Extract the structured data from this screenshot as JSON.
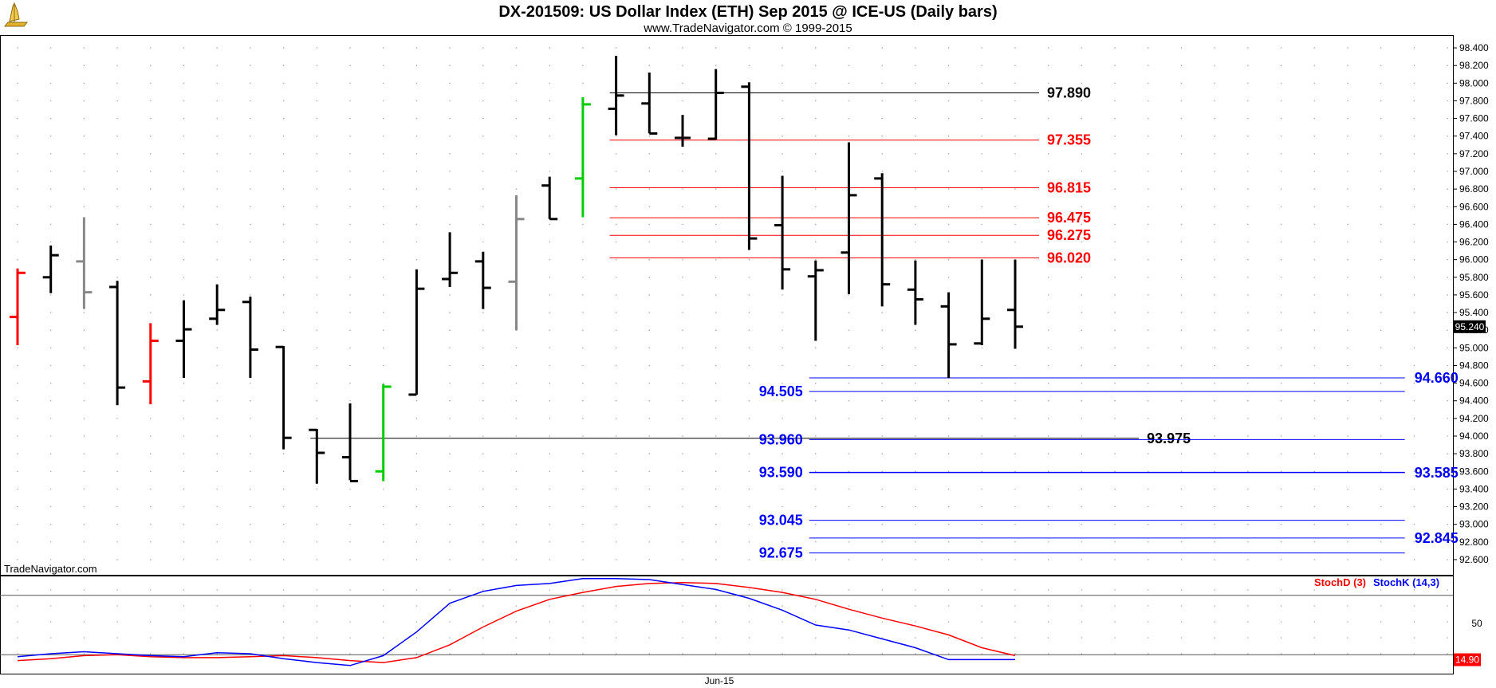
{
  "chart_data": {
    "type": "bar",
    "title": "DX-201509:  US Dollar Index (ETH) Sep 2015 @ ICE-US  (Daily bars)",
    "subtitle": "www.TradeNavigator.com © 1999-2015",
    "watermark": "TradeNavigator.com",
    "x_label": "Jun-15",
    "price_axis": {
      "ylim": [
        92.5,
        98.5
      ],
      "ticks": [
        "98.400",
        "98.200",
        "98.000",
        "97.800",
        "97.600",
        "97.400",
        "97.200",
        "97.000",
        "96.800",
        "96.600",
        "96.400",
        "96.200",
        "96.000",
        "95.800",
        "95.600",
        "95.400",
        "95.200",
        "95.000",
        "94.800",
        "94.600",
        "94.400",
        "94.200",
        "94.000",
        "93.800",
        "93.600",
        "93.400",
        "93.200",
        "93.000",
        "92.800",
        "92.600"
      ],
      "last_value": "95.240"
    },
    "colors": {
      "up": "#000000",
      "down_red": "#ff0000",
      "green": "#00cc00",
      "gray": "#888888",
      "resistance": "#ff0000",
      "support": "#0000ff",
      "stochK": "#0000ff",
      "stochD": "#ff0000"
    },
    "bars": [
      {
        "o": 95.35,
        "h": 95.9,
        "l": 95.03,
        "c": 95.85,
        "color": "red"
      },
      {
        "o": 95.8,
        "h": 96.16,
        "l": 95.62,
        "c": 96.05,
        "color": "black"
      },
      {
        "o": 95.98,
        "h": 96.48,
        "l": 95.44,
        "c": 95.63,
        "color": "gray"
      },
      {
        "o": 95.69,
        "h": 95.76,
        "l": 94.35,
        "c": 94.55,
        "color": "black"
      },
      {
        "o": 94.62,
        "h": 95.28,
        "l": 94.36,
        "c": 95.08,
        "color": "red"
      },
      {
        "o": 95.08,
        "h": 95.54,
        "l": 94.66,
        "c": 95.21,
        "color": "black"
      },
      {
        "o": 95.33,
        "h": 95.72,
        "l": 95.26,
        "c": 95.43,
        "color": "black"
      },
      {
        "o": 95.52,
        "h": 95.58,
        "l": 94.66,
        "c": 94.98,
        "color": "black"
      },
      {
        "o": 95.01,
        "h": 95.02,
        "l": 93.85,
        "c": 93.98,
        "color": "black"
      },
      {
        "o": 94.07,
        "h": 94.08,
        "l": 93.46,
        "c": 93.81,
        "color": "black"
      },
      {
        "o": 93.76,
        "h": 94.37,
        "l": 93.5,
        "c": 93.49,
        "color": "black"
      },
      {
        "o": 93.6,
        "h": 94.59,
        "l": 93.49,
        "c": 94.56,
        "color": "green"
      },
      {
        "o": 94.47,
        "h": 95.89,
        "l": 94.47,
        "c": 95.67,
        "color": "black"
      },
      {
        "o": 95.78,
        "h": 96.31,
        "l": 95.69,
        "c": 95.85,
        "color": "black"
      },
      {
        "o": 95.98,
        "h": 96.09,
        "l": 95.44,
        "c": 95.68,
        "color": "black"
      },
      {
        "o": 95.75,
        "h": 96.73,
        "l": 95.2,
        "c": 96.46,
        "color": "gray"
      },
      {
        "o": 96.84,
        "h": 96.94,
        "l": 96.46,
        "c": 96.46,
        "color": "black"
      },
      {
        "o": 96.92,
        "h": 97.84,
        "l": 96.48,
        "c": 97.76,
        "color": "green"
      },
      {
        "o": 97.71,
        "h": 98.31,
        "l": 97.41,
        "c": 97.86,
        "color": "black"
      },
      {
        "o": 97.77,
        "h": 98.12,
        "l": 97.43,
        "c": 97.43,
        "color": "black"
      },
      {
        "o": 97.38,
        "h": 97.64,
        "l": 97.28,
        "c": 97.38,
        "color": "black"
      },
      {
        "o": 97.37,
        "h": 98.16,
        "l": 97.36,
        "c": 97.89,
        "color": "black"
      },
      {
        "o": 97.96,
        "h": 98.01,
        "l": 96.11,
        "c": 96.24,
        "color": "black"
      },
      {
        "o": 96.39,
        "h": 96.95,
        "l": 95.66,
        "c": 95.89,
        "color": "black"
      },
      {
        "o": 95.81,
        "h": 95.99,
        "l": 95.08,
        "c": 95.88,
        "color": "black"
      },
      {
        "o": 96.08,
        "h": 97.33,
        "l": 95.61,
        "c": 96.73,
        "color": "black"
      },
      {
        "o": 96.92,
        "h": 96.98,
        "l": 95.47,
        "c": 95.72,
        "color": "black"
      },
      {
        "o": 95.66,
        "h": 95.99,
        "l": 95.26,
        "c": 95.55,
        "color": "black"
      },
      {
        "o": 95.47,
        "h": 95.63,
        "l": 94.66,
        "c": 95.04,
        "color": "black"
      },
      {
        "o": 95.05,
        "h": 96.0,
        "l": 95.03,
        "c": 95.33,
        "color": "black"
      },
      {
        "o": 95.43,
        "h": 96.0,
        "l": 94.99,
        "c": 95.24,
        "color": "black"
      }
    ],
    "levels": [
      {
        "value": 97.89,
        "label": "97.890",
        "color": "black",
        "fromBar": 18,
        "toBar": 30,
        "label_side": "right-end",
        "kind": "pivot"
      },
      {
        "value": 97.355,
        "label": "97.355",
        "color": "red",
        "fromBar": 18,
        "toBar": 30,
        "label_side": "right-end",
        "kind": "resistance"
      },
      {
        "value": 96.815,
        "label": "96.815",
        "color": "red",
        "fromBar": 18,
        "toBar": 30,
        "label_side": "right-end",
        "kind": "resistance"
      },
      {
        "value": 96.475,
        "label": "96.475",
        "color": "red",
        "fromBar": 18,
        "toBar": 30,
        "label_side": "right-end",
        "kind": "resistance"
      },
      {
        "value": 96.275,
        "label": "96.275",
        "color": "red",
        "fromBar": 18,
        "toBar": 30,
        "label_side": "right-end",
        "kind": "resistance"
      },
      {
        "value": 96.02,
        "label": "96.020",
        "color": "red",
        "fromBar": 18,
        "toBar": 30,
        "label_side": "right-end",
        "kind": "resistance"
      },
      {
        "value": 94.66,
        "label": "94.660",
        "color": "blue",
        "fromBar": 24,
        "toBar": 41,
        "label_side": "far-right",
        "kind": "support"
      },
      {
        "value": 94.505,
        "label": "94.505",
        "color": "blue",
        "fromBar": 24,
        "toBar": 41,
        "label_side": "left",
        "kind": "support"
      },
      {
        "value": 93.975,
        "label": "93.975",
        "color": "black",
        "fromBar": 9,
        "toBar": 33,
        "label_side": "right-end",
        "kind": "pivot"
      },
      {
        "value": 93.96,
        "label": "93.960",
        "color": "blue",
        "fromBar": 24,
        "toBar": 41,
        "label_side": "left",
        "kind": "support"
      },
      {
        "value": 93.59,
        "label": "93.590",
        "color": "blue",
        "fromBar": 24,
        "toBar": 41,
        "label_side": "left",
        "kind": "support"
      },
      {
        "value": 93.585,
        "label": "93.585",
        "color": "blue",
        "fromBar": 24,
        "toBar": 41,
        "label_side": "far-right",
        "kind": "support"
      },
      {
        "value": 93.045,
        "label": "93.045",
        "color": "blue",
        "fromBar": 24,
        "toBar": 41,
        "label_side": "left",
        "kind": "support"
      },
      {
        "value": 92.845,
        "label": "92.845",
        "color": "blue",
        "fromBar": 24,
        "toBar": 41,
        "label_side": "far-right",
        "kind": "support"
      },
      {
        "value": 92.675,
        "label": "92.675",
        "color": "blue",
        "fromBar": 24,
        "toBar": 41,
        "label_side": "left",
        "kind": "support"
      }
    ],
    "stochastic": {
      "ylim": [
        0,
        100
      ],
      "ticks": [
        "50"
      ],
      "ref_lines": [
        80,
        20
      ],
      "last_value": "14.90",
      "legend": [
        {
          "name": "StochD (3)",
          "color": "red"
        },
        {
          "name": "StochK (14,3)",
          "color": "blue"
        }
      ],
      "stochD": [
        14,
        16,
        19,
        20,
        18,
        17,
        17,
        18,
        19,
        17,
        14,
        12,
        17,
        30,
        48,
        64,
        76,
        83,
        89,
        92,
        93,
        92,
        88,
        83,
        76,
        66,
        57,
        49,
        40,
        27,
        19
      ],
      "stochK": [
        18,
        21,
        23,
        21,
        19,
        18,
        22,
        21,
        16,
        12,
        9,
        19,
        43,
        72,
        84,
        90,
        92,
        97,
        97,
        96,
        91,
        86,
        77,
        65,
        50,
        45,
        36,
        27,
        15,
        15,
        15
      ]
    }
  }
}
